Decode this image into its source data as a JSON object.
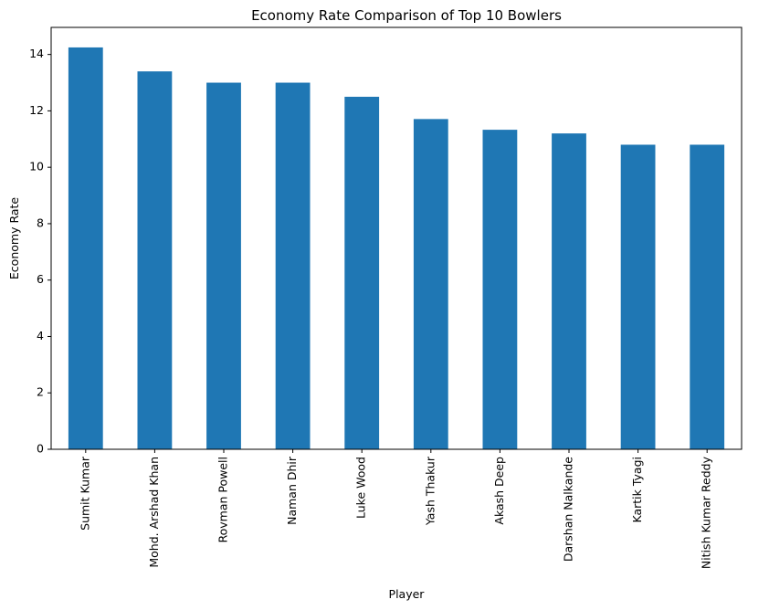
{
  "chart_data": {
    "type": "bar",
    "title": "Economy Rate Comparison of Top 10 Bowlers",
    "xlabel": "Player",
    "ylabel": "Economy Rate",
    "categories": [
      "Sumit Kumar",
      "Mohd. Arshad Khan",
      "Rovman Powell",
      "Naman Dhir",
      "Luke Wood",
      "Yash Thakur",
      "Akash Deep",
      "Darshan Nalkande",
      "Kartik Tyagi",
      "Nitish Kumar Reddy"
    ],
    "values": [
      14.25,
      13.4,
      13.0,
      13.0,
      12.5,
      11.71,
      11.33,
      11.2,
      10.8,
      10.8
    ],
    "ylim": [
      0,
      14.96
    ],
    "yticks": [
      0,
      2,
      4,
      6,
      8,
      10,
      12,
      14
    ],
    "bar_color": "#1f77b4",
    "grid": false,
    "legend": "none"
  }
}
